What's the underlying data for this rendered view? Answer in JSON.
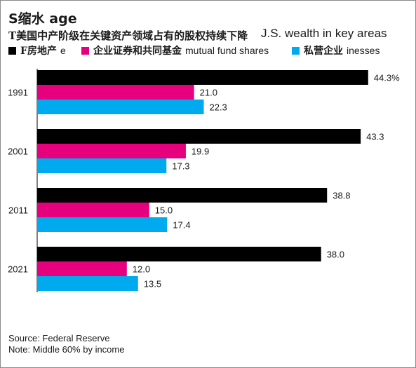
{
  "header": {
    "title": "S缩水 age",
    "subtitle_cn": "T美国中产阶级在关键资产领域占有的股权持续下降",
    "subtitle_en": "J.S. wealth in key areas"
  },
  "legend": [
    {
      "marker": "■",
      "cn": "F房地产",
      "en": "e",
      "color": "#000000"
    },
    {
      "marker": "■",
      "cn": "企业证券和共同基金",
      "en": "mutual fund shares",
      "color": "#e6007e"
    },
    {
      "marker": "■",
      "cn": "私营企业",
      "en": "inesses",
      "color": "#00aaee"
    }
  ],
  "chart_data": {
    "type": "bar",
    "orientation": "horizontal",
    "categories": [
      "1991",
      "2001",
      "2011",
      "2021"
    ],
    "series": [
      {
        "name": "房地产",
        "color": "#000000",
        "values": [
          44.3,
          43.3,
          38.8,
          38.0
        ],
        "labels": [
          "44.3%",
          "43.3",
          "38.8",
          "38.0"
        ]
      },
      {
        "name": "企业证券和共同基金",
        "color": "#e6007e",
        "values": [
          21.0,
          19.9,
          15.0,
          12.0
        ],
        "labels": [
          "21.0",
          "19.9",
          "15.0",
          "12.0"
        ]
      },
      {
        "name": "私营企业",
        "color": "#00aaee",
        "values": [
          22.3,
          17.3,
          17.4,
          13.5
        ],
        "labels": [
          "22.3",
          "17.3",
          "17.4",
          "13.5"
        ]
      }
    ],
    "xlim": [
      0,
      50
    ],
    "grid": false
  },
  "footer": {
    "source": "Source: Federal Reserve",
    "note": "Note: Middle 60% by income"
  }
}
